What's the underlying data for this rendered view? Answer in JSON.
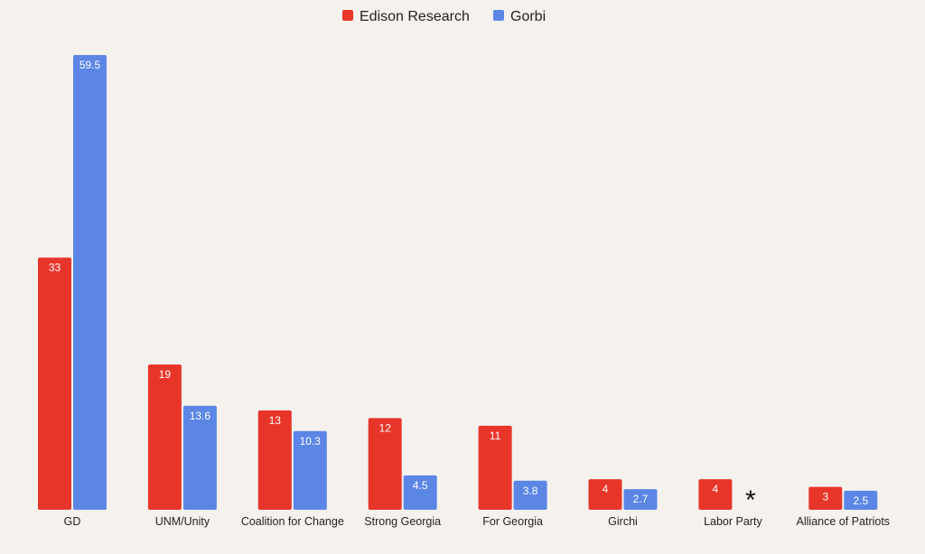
{
  "chart_data": {
    "type": "bar",
    "categories": [
      "GD",
      "UNM/Unity",
      "Coalition for Change",
      "Strong Georgia",
      "For Georgia",
      "Girchi",
      "Labor Party",
      "Alliance of Patriots"
    ],
    "series": [
      {
        "name": "Edison Research",
        "color": "#e8352a",
        "values": [
          33,
          19,
          13,
          12,
          11,
          4,
          4,
          3
        ]
      },
      {
        "name": "Gorbi",
        "color": "#5b86e5",
        "values": [
          59.5,
          13.6,
          10.3,
          4.5,
          3.8,
          2.7,
          null,
          2.5
        ]
      }
    ],
    "missing_marker": "*",
    "ylim": [
      0,
      62
    ],
    "legend_position": "top-center",
    "grid": false
  }
}
